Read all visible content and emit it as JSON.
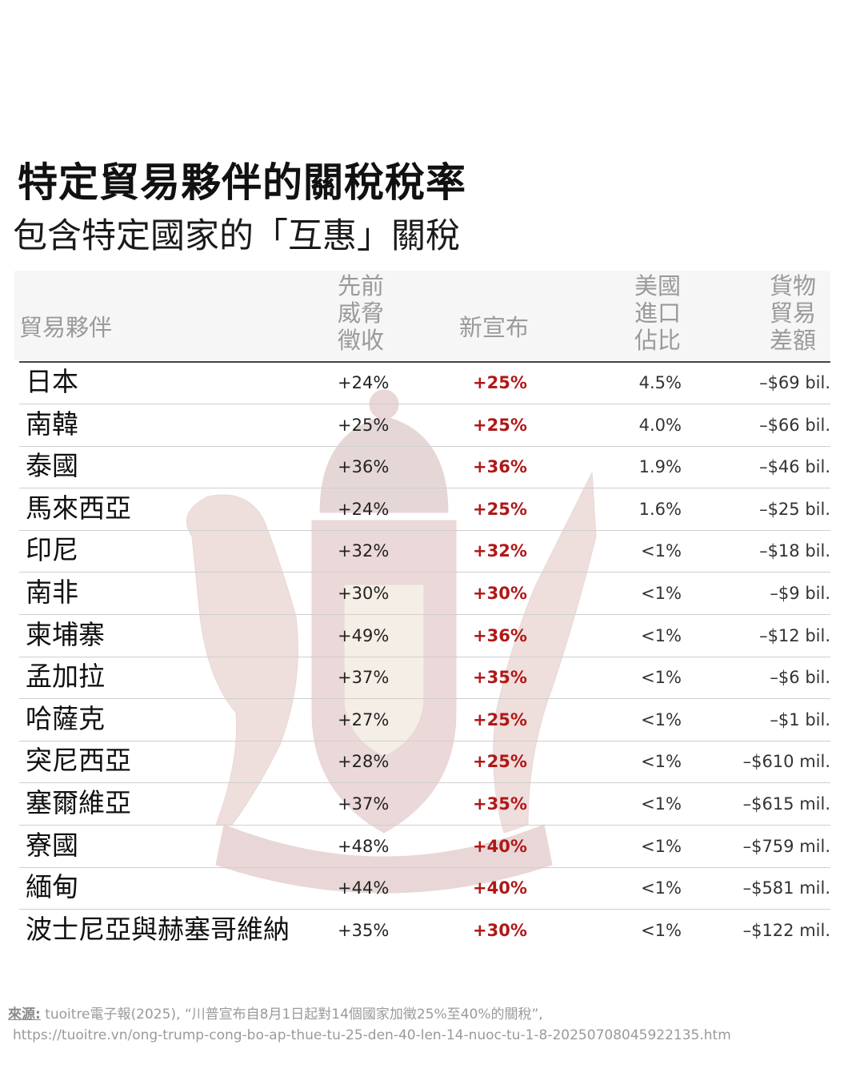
{
  "title": "特定貿易夥伴的關稅稅率",
  "subtitle": "包含特定國家的「互惠」關稅",
  "icons": {
    "watermark": "coat-of-arms-watermark"
  },
  "colors": {
    "new_rate": "#b01818",
    "header_text": "#9a9a9a",
    "header_bg": "#f6f6f6"
  },
  "chart_data": {
    "type": "table",
    "columns": {
      "partner": "貿易夥伴",
      "prev_lines": [
        "先前",
        "威脅",
        "徵收"
      ],
      "new": "新宣布",
      "share_lines": [
        "美國",
        "進口",
        "佔比"
      ],
      "balance_lines": [
        "貨物",
        "貿易",
        "差額"
      ]
    },
    "rows": [
      {
        "partner": "日本",
        "prev": "+24%",
        "new": "+25%",
        "share": "4.5%",
        "balance": "–$69 bil."
      },
      {
        "partner": "南韓",
        "prev": "+25%",
        "new": "+25%",
        "share": "4.0%",
        "balance": "–$66 bil."
      },
      {
        "partner": "泰國",
        "prev": "+36%",
        "new": "+36%",
        "share": "1.9%",
        "balance": "–$46 bil."
      },
      {
        "partner": "馬來西亞",
        "prev": "+24%",
        "new": "+25%",
        "share": "1.6%",
        "balance": "–$25 bil."
      },
      {
        "partner": "印尼",
        "prev": "+32%",
        "new": "+32%",
        "share": "<1%",
        "balance": "–$18 bil."
      },
      {
        "partner": "南非",
        "prev": "+30%",
        "new": "+30%",
        "share": "<1%",
        "balance": "–$9 bil."
      },
      {
        "partner": "柬埔寨",
        "prev": "+49%",
        "new": "+36%",
        "share": "<1%",
        "balance": "–$12 bil."
      },
      {
        "partner": "孟加拉",
        "prev": "+37%",
        "new": "+35%",
        "share": "<1%",
        "balance": "–$6 bil."
      },
      {
        "partner": "哈薩克",
        "prev": "+27%",
        "new": "+25%",
        "share": "<1%",
        "balance": "–$1 bil."
      },
      {
        "partner": "突尼西亞",
        "prev": "+28%",
        "new": "+25%",
        "share": "<1%",
        "balance": "–$610 mil."
      },
      {
        "partner": "塞爾維亞",
        "prev": "+37%",
        "new": "+35%",
        "share": "<1%",
        "balance": "–$615 mil."
      },
      {
        "partner": "寮國",
        "prev": "+48%",
        "new": "+40%",
        "share": "<1%",
        "balance": "–$759 mil."
      },
      {
        "partner": "緬甸",
        "prev": "+44%",
        "new": "+40%",
        "share": "<1%",
        "balance": "–$581 mil."
      },
      {
        "partner": "波士尼亞與赫塞哥維納",
        "prev": "+35%",
        "new": "+30%",
        "share": "<1%",
        "balance": "–$122 mil."
      }
    ]
  },
  "source": {
    "label": "來源:",
    "text": " tuoitre電子報(2025), “川普宣布自8月1日起對14個國家加徵25%至40%的關稅”,",
    "url": "https://tuoitre.vn/ong-trump-cong-bo-ap-thue-tu-25-den-40-len-14-nuoc-tu-1-8-20250708045922135.htm"
  }
}
